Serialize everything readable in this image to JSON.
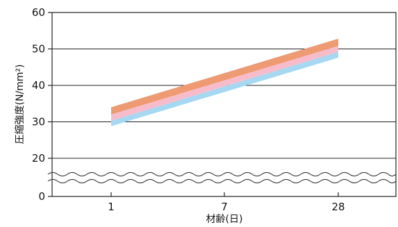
{
  "chart_data": {
    "type": "area",
    "xlabel": "材齢(日)",
    "ylabel": "圧縮強度(N/mm²)",
    "ylabel_sup": "2",
    "x_categories": [
      "1",
      "7",
      "28"
    ],
    "y_ticks": [
      0,
      20,
      30,
      40,
      50,
      60
    ],
    "ylim": [
      0,
      60
    ],
    "y_axis_break": true,
    "grid": true,
    "series": [
      {
        "band": [
          [
            1,
            32.0
          ],
          [
            28,
            50.8
          ]
        ],
        "values_bottom": [
          32.0,
          50.8
        ],
        "values_top": [
          34.0,
          52.8
        ],
        "color": "#ee9a72"
      },
      {
        "band": [
          [
            1,
            30.3
          ],
          [
            28,
            49.2
          ]
        ],
        "values_bottom": [
          30.3,
          49.2
        ],
        "values_top": [
          32.0,
          50.8
        ],
        "color": "#f7bccb"
      },
      {
        "band": [
          [
            1,
            28.8
          ],
          [
            28,
            47.6
          ]
        ],
        "values_bottom": [
          28.8,
          47.6
        ],
        "values_top": [
          30.3,
          49.2
        ],
        "color": "#a6d8f2"
      }
    ]
  }
}
